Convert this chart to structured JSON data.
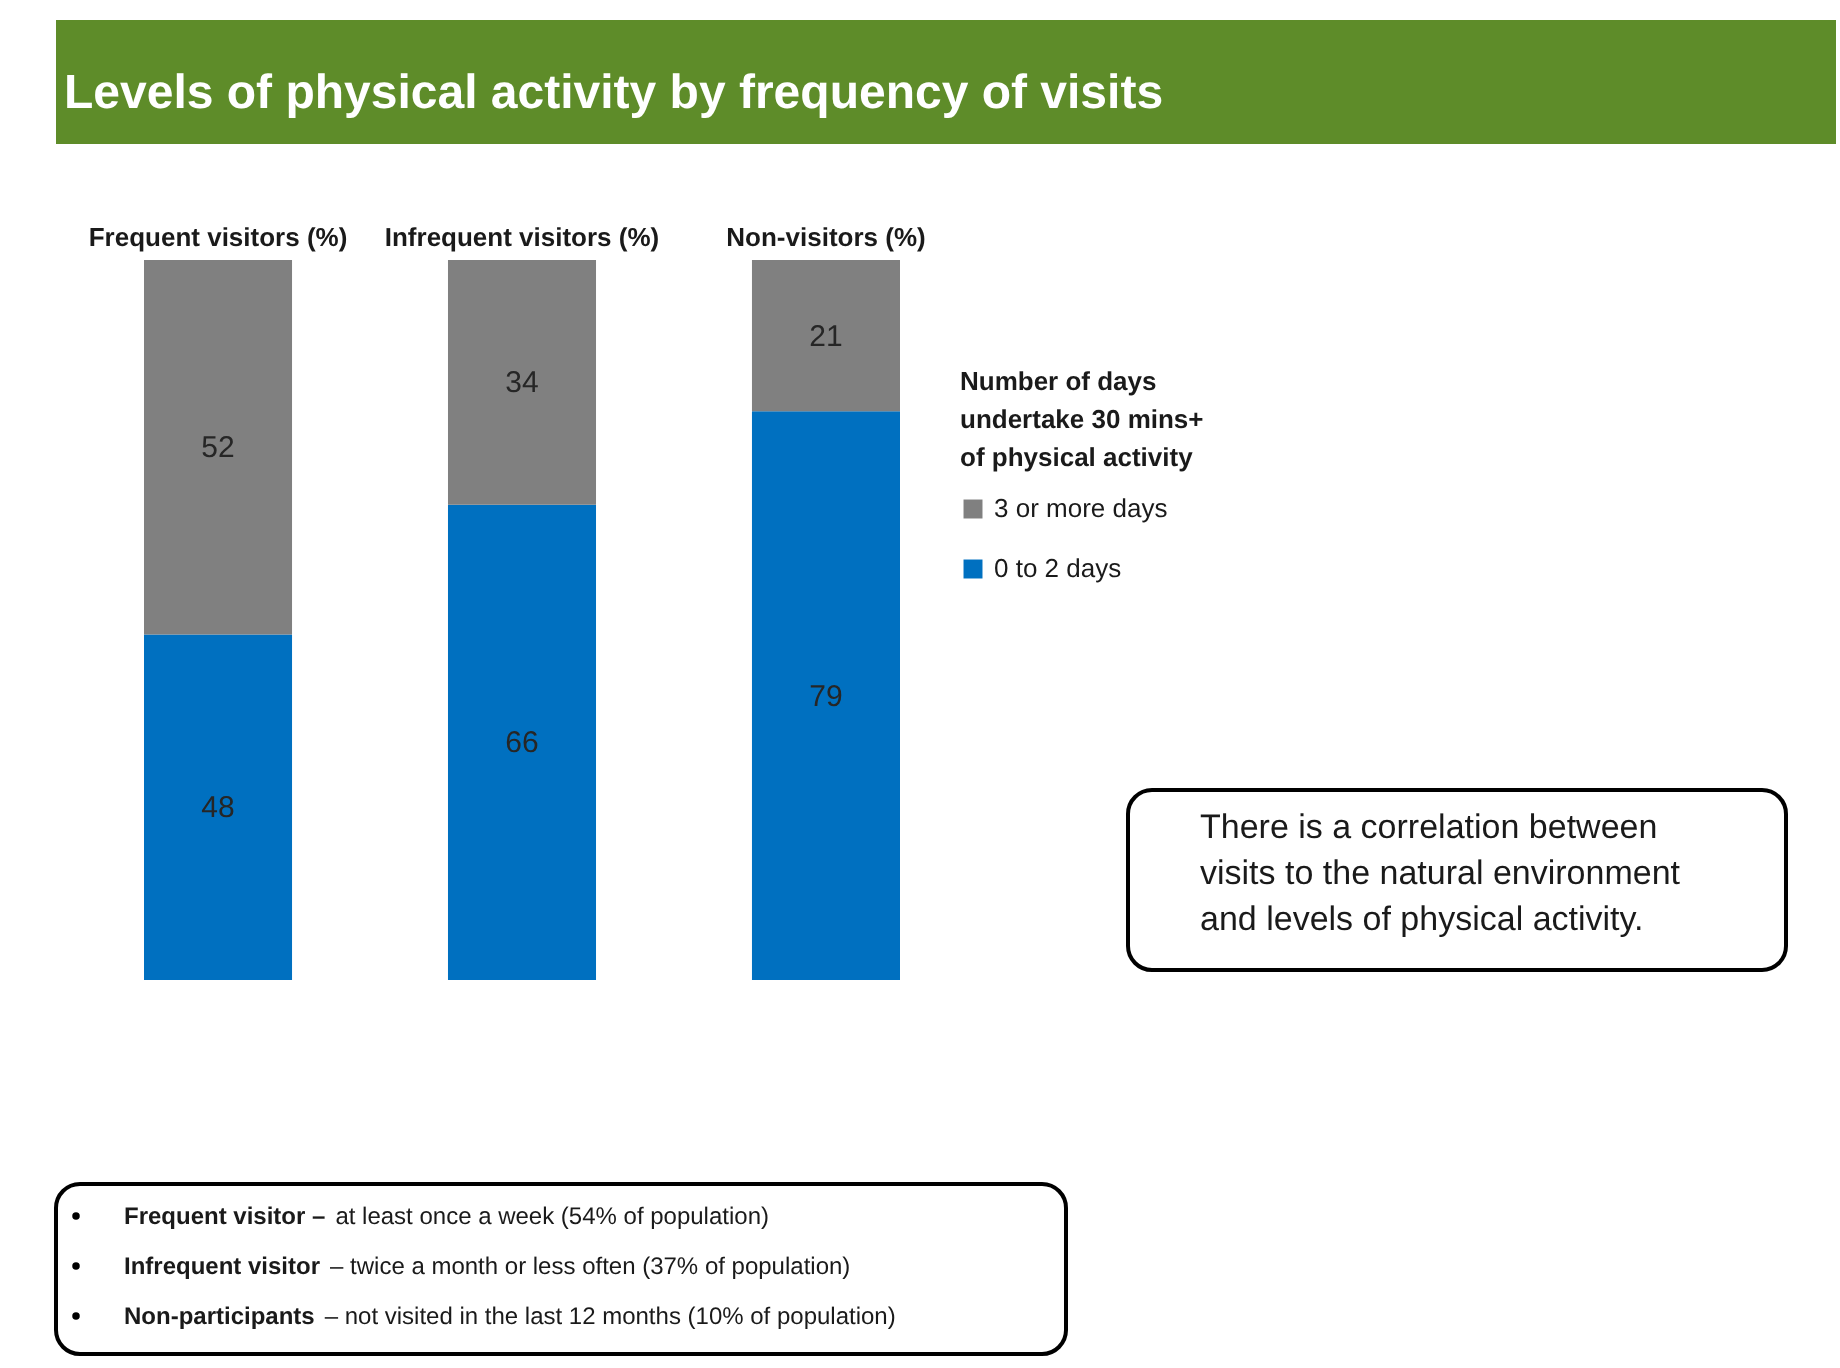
{
  "chart_data": {
    "type": "bar",
    "title": "Levels of physical activity by frequency of visits",
    "categories": [
      "Frequent visitors (%)",
      "Infrequent visitors (%)",
      "Non-visitors (%)"
    ],
    "series": [
      {
        "name": "0 to 2 days",
        "color": "#0070c0",
        "values": [
          48,
          66,
          79
        ]
      },
      {
        "name": "3 or more days",
        "color": "#808080",
        "values": [
          52,
          34,
          21
        ]
      }
    ],
    "stacked": true,
    "data_labels": true,
    "legend": "right",
    "legend_title": "Number of days undertake 30 mins+ of physical activity",
    "annotations": [
      "There is a correlation between visits to the natural environment and levels of physical activity.",
      "Frequent visitor –",
      "at least once a week (54% of population)",
      "Infrequent visitor",
      "– twice a month or less often (37% of population)",
      "Non-participants",
      "– not visited in the last 12 months (10% of population)"
    ]
  }
}
